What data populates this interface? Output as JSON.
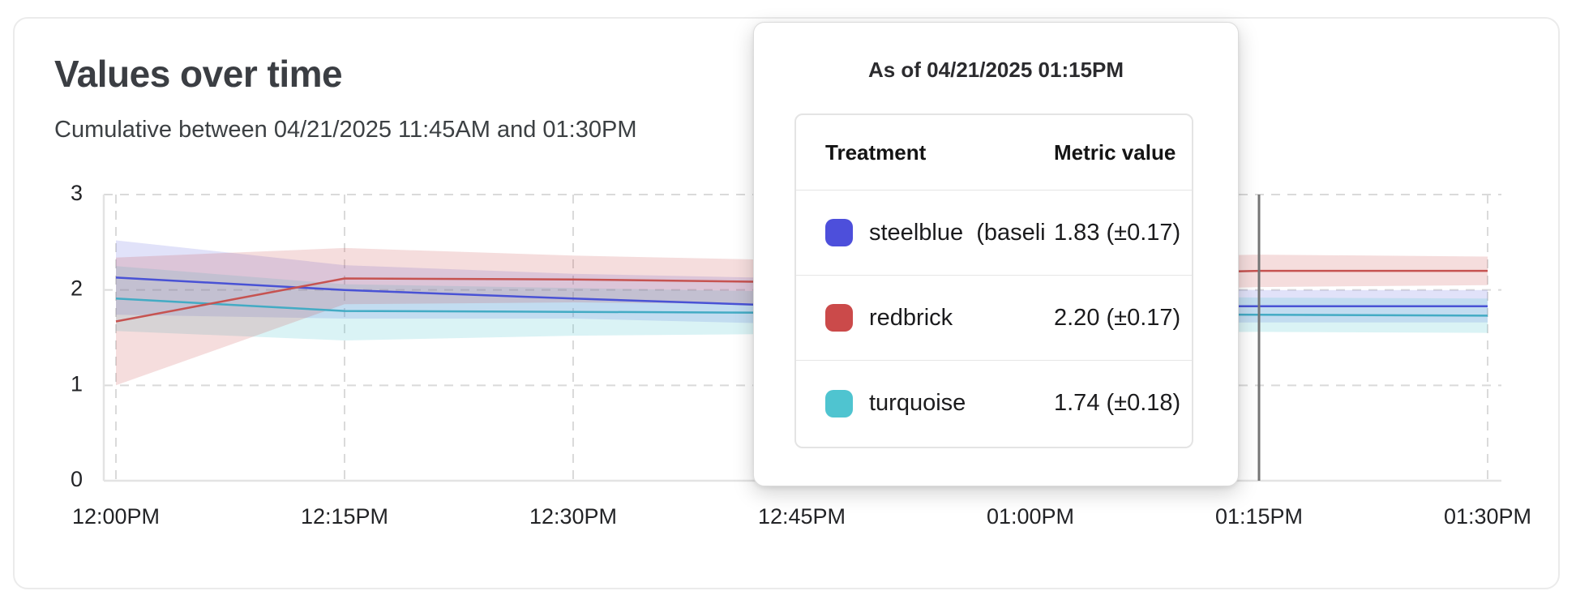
{
  "card": {
    "title": "Values over time",
    "subtitle": "Cumulative between 04/21/2025 11:45AM and 01:30PM"
  },
  "tooltip": {
    "title": "As of 04/21/2025 01:15PM",
    "columns": {
      "treatment": "Treatment",
      "metric": "Metric value"
    },
    "rows": [
      {
        "label": "steelblue  (baseli",
        "value": "1.83 (±0.17)",
        "color": "#4d4fdb"
      },
      {
        "label": "redbrick",
        "value": "2.20 (±0.17)",
        "color": "#cb4a4a"
      },
      {
        "label": "turquoise",
        "value": "1.74 (±0.18)",
        "color": "#4fc4d0"
      }
    ]
  },
  "chart_data": {
    "type": "line",
    "title": "Values over time",
    "x_labels": [
      "12:00PM",
      "12:15PM",
      "12:30PM",
      "12:45PM",
      "01:00PM",
      "01:15PM",
      "01:30PM"
    ],
    "y_ticks": [
      "0",
      "1",
      "2",
      "3"
    ],
    "ylim": [
      0,
      3
    ],
    "grid": "dashed",
    "hover_marker_x_label": "01:15PM",
    "series": [
      {
        "name": "steelblue (baseline)",
        "line_color": "#4952d5",
        "band_color": "rgba(80,84,222,0.17)",
        "values": [
          2.13,
          2.0,
          1.91,
          1.83,
          1.83,
          1.83,
          1.83
        ],
        "upper": [
          2.52,
          2.26,
          2.17,
          2.12,
          2.05,
          2.0,
          2.0
        ],
        "lower": [
          1.74,
          1.7,
          1.7,
          1.64,
          1.65,
          1.66,
          1.66
        ]
      },
      {
        "name": "turquoise",
        "line_color": "#43abc4",
        "band_color": "rgba(79,196,208,0.21)",
        "values": [
          1.91,
          1.78,
          1.77,
          1.76,
          1.75,
          1.74,
          1.73
        ],
        "upper": [
          2.25,
          2.06,
          2.02,
          1.98,
          1.95,
          1.92,
          1.91
        ],
        "lower": [
          1.57,
          1.47,
          1.52,
          1.54,
          1.55,
          1.56,
          1.55
        ]
      },
      {
        "name": "redbrick",
        "line_color": "#c65351",
        "band_color": "rgba(203,74,74,0.19)",
        "values": [
          1.67,
          2.12,
          2.11,
          2.08,
          2.15,
          2.2,
          2.2
        ],
        "upper": [
          2.34,
          2.44,
          2.36,
          2.31,
          2.33,
          2.37,
          2.35
        ],
        "lower": [
          1.0,
          1.85,
          1.87,
          1.85,
          1.97,
          2.03,
          2.05
        ]
      }
    ]
  }
}
